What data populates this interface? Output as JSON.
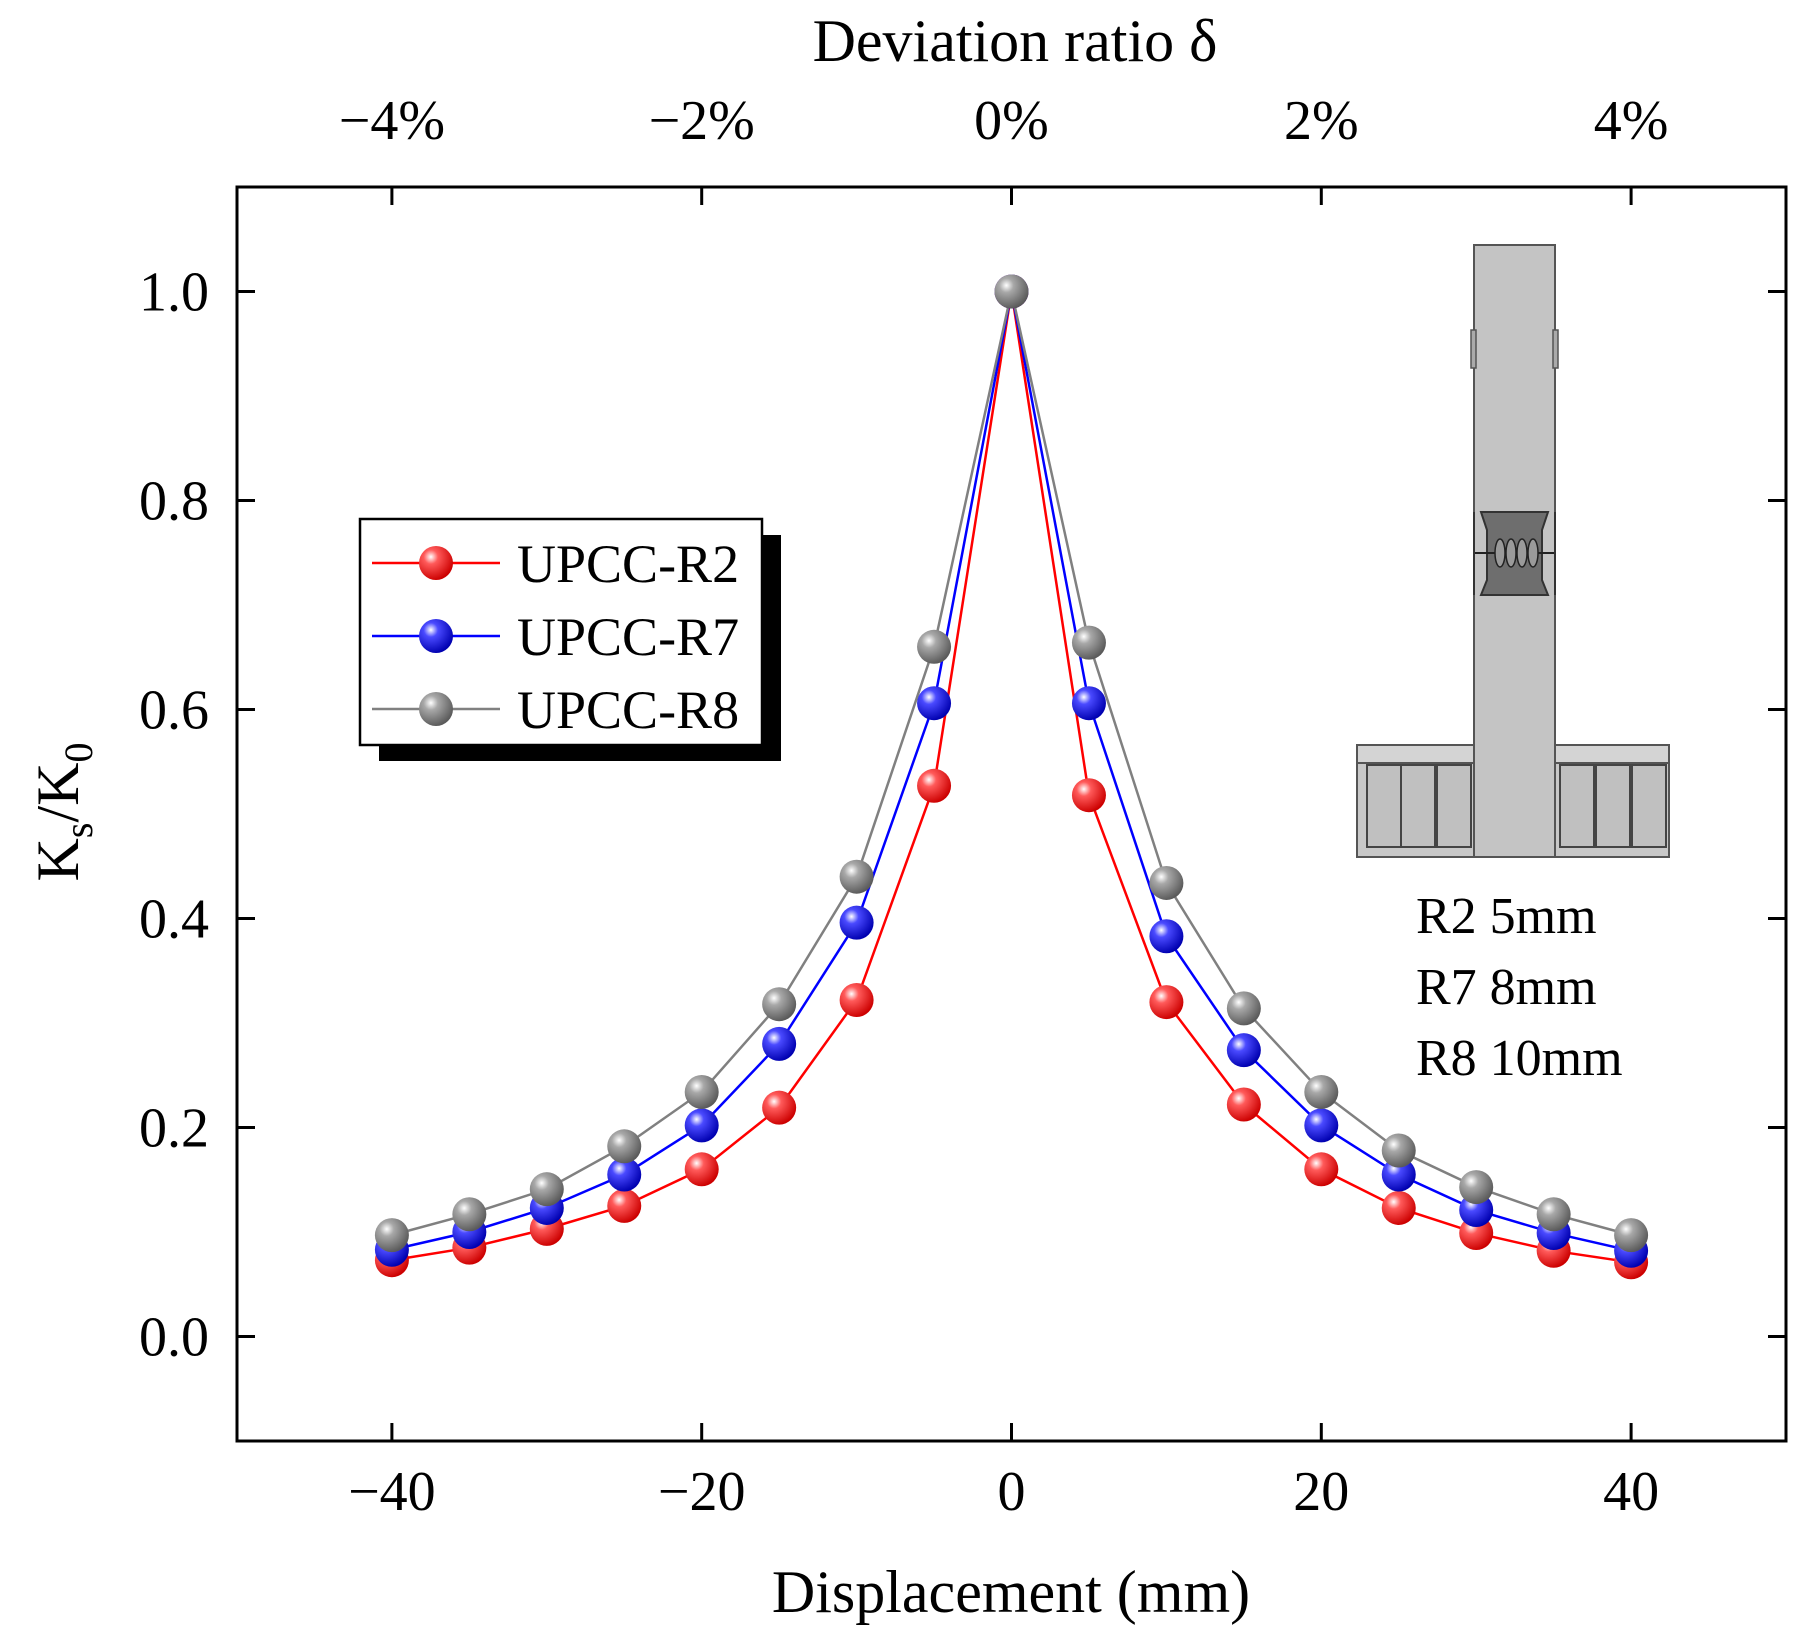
{
  "chart_data": {
    "type": "line",
    "title": "",
    "xlabel": "Displacement (mm)",
    "ylabel_main": "K",
    "ylabel_sub1": "s",
    "ylabel_mid": "/K",
    "ylabel_sub2": "0",
    "top_xlabel": "Deviation ratio δ",
    "xlim": [
      -50,
      50
    ],
    "ylim": [
      -0.1,
      1.1
    ],
    "x": [
      -40,
      -35,
      -30,
      -25,
      -20,
      -15,
      -10,
      -5,
      0,
      5,
      10,
      15,
      20,
      25,
      30,
      35,
      40
    ],
    "xticks": [
      -40,
      -20,
      0,
      20,
      40
    ],
    "xtick_labels": [
      "−40",
      "−20",
      "0",
      "20",
      "40"
    ],
    "yticks": [
      0.0,
      0.2,
      0.4,
      0.6,
      0.8,
      1.0
    ],
    "ytick_labels": [
      "0.0",
      "0.2",
      "0.4",
      "0.6",
      "0.8",
      "1.0"
    ],
    "top_ticks": [
      -40,
      -20,
      0,
      20,
      40
    ],
    "top_tick_labels": [
      "−4%",
      "−2%",
      "0%",
      "2%",
      "4%"
    ],
    "series": [
      {
        "name": "UPCC-R2",
        "color": "#ff0000",
        "values": [
          0.073,
          0.085,
          0.103,
          0.125,
          0.16,
          0.219,
          0.322,
          0.527,
          1.0,
          0.518,
          0.32,
          0.222,
          0.16,
          0.123,
          0.099,
          0.082,
          0.071
        ]
      },
      {
        "name": "UPCC-R7",
        "color": "#0000ff",
        "values": [
          0.083,
          0.1,
          0.123,
          0.155,
          0.202,
          0.28,
          0.396,
          0.606,
          1.0,
          0.606,
          0.383,
          0.274,
          0.202,
          0.155,
          0.121,
          0.099,
          0.082
        ]
      },
      {
        "name": "UPCC-R8",
        "color": "#808080",
        "values": [
          0.097,
          0.117,
          0.141,
          0.182,
          0.234,
          0.318,
          0.44,
          0.66,
          1.0,
          0.664,
          0.434,
          0.314,
          0.234,
          0.178,
          0.143,
          0.117,
          0.097
        ]
      }
    ],
    "legend_position": "middle-left",
    "inset_notes": [
      "R2 5mm",
      "R7 8mm",
      "R8 10mm"
    ]
  }
}
